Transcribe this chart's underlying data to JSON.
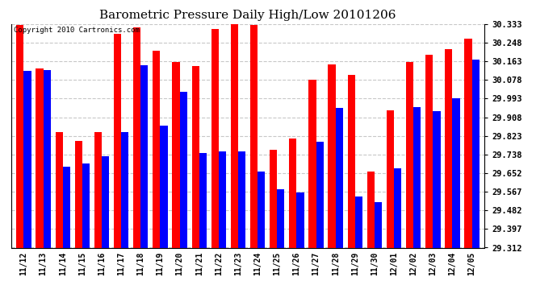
{
  "title": "Barometric Pressure Daily High/Low 20101206",
  "copyright": "Copyright 2010 Cartronics.com",
  "dates": [
    "11/12",
    "11/13",
    "11/14",
    "11/15",
    "11/16",
    "11/17",
    "11/18",
    "11/19",
    "11/20",
    "11/21",
    "11/22",
    "11/23",
    "11/24",
    "11/25",
    "11/26",
    "11/27",
    "11/28",
    "11/29",
    "11/30",
    "12/01",
    "12/02",
    "12/03",
    "12/04",
    "12/05"
  ],
  "highs": [
    30.33,
    30.13,
    29.84,
    29.8,
    29.84,
    30.29,
    30.32,
    30.21,
    30.16,
    30.14,
    30.31,
    30.335,
    30.33,
    29.76,
    29.81,
    30.08,
    30.15,
    30.1,
    29.66,
    29.94,
    30.16,
    30.195,
    30.22,
    30.265
  ],
  "lows": [
    30.12,
    30.125,
    29.68,
    29.695,
    29.73,
    29.84,
    30.145,
    29.87,
    30.025,
    29.745,
    29.75,
    29.75,
    29.66,
    29.58,
    29.565,
    29.795,
    29.95,
    29.545,
    29.52,
    29.675,
    29.955,
    29.935,
    29.995,
    30.17
  ],
  "high_color": "#ff0000",
  "low_color": "#0000ff",
  "bg_color": "#ffffff",
  "grid_color": "#c8c8c8",
  "yticks": [
    29.312,
    29.397,
    29.482,
    29.567,
    29.652,
    29.738,
    29.823,
    29.908,
    29.993,
    30.078,
    30.163,
    30.248,
    30.333
  ],
  "ymin": 29.312,
  "ymax": 30.333,
  "bar_width": 0.38
}
